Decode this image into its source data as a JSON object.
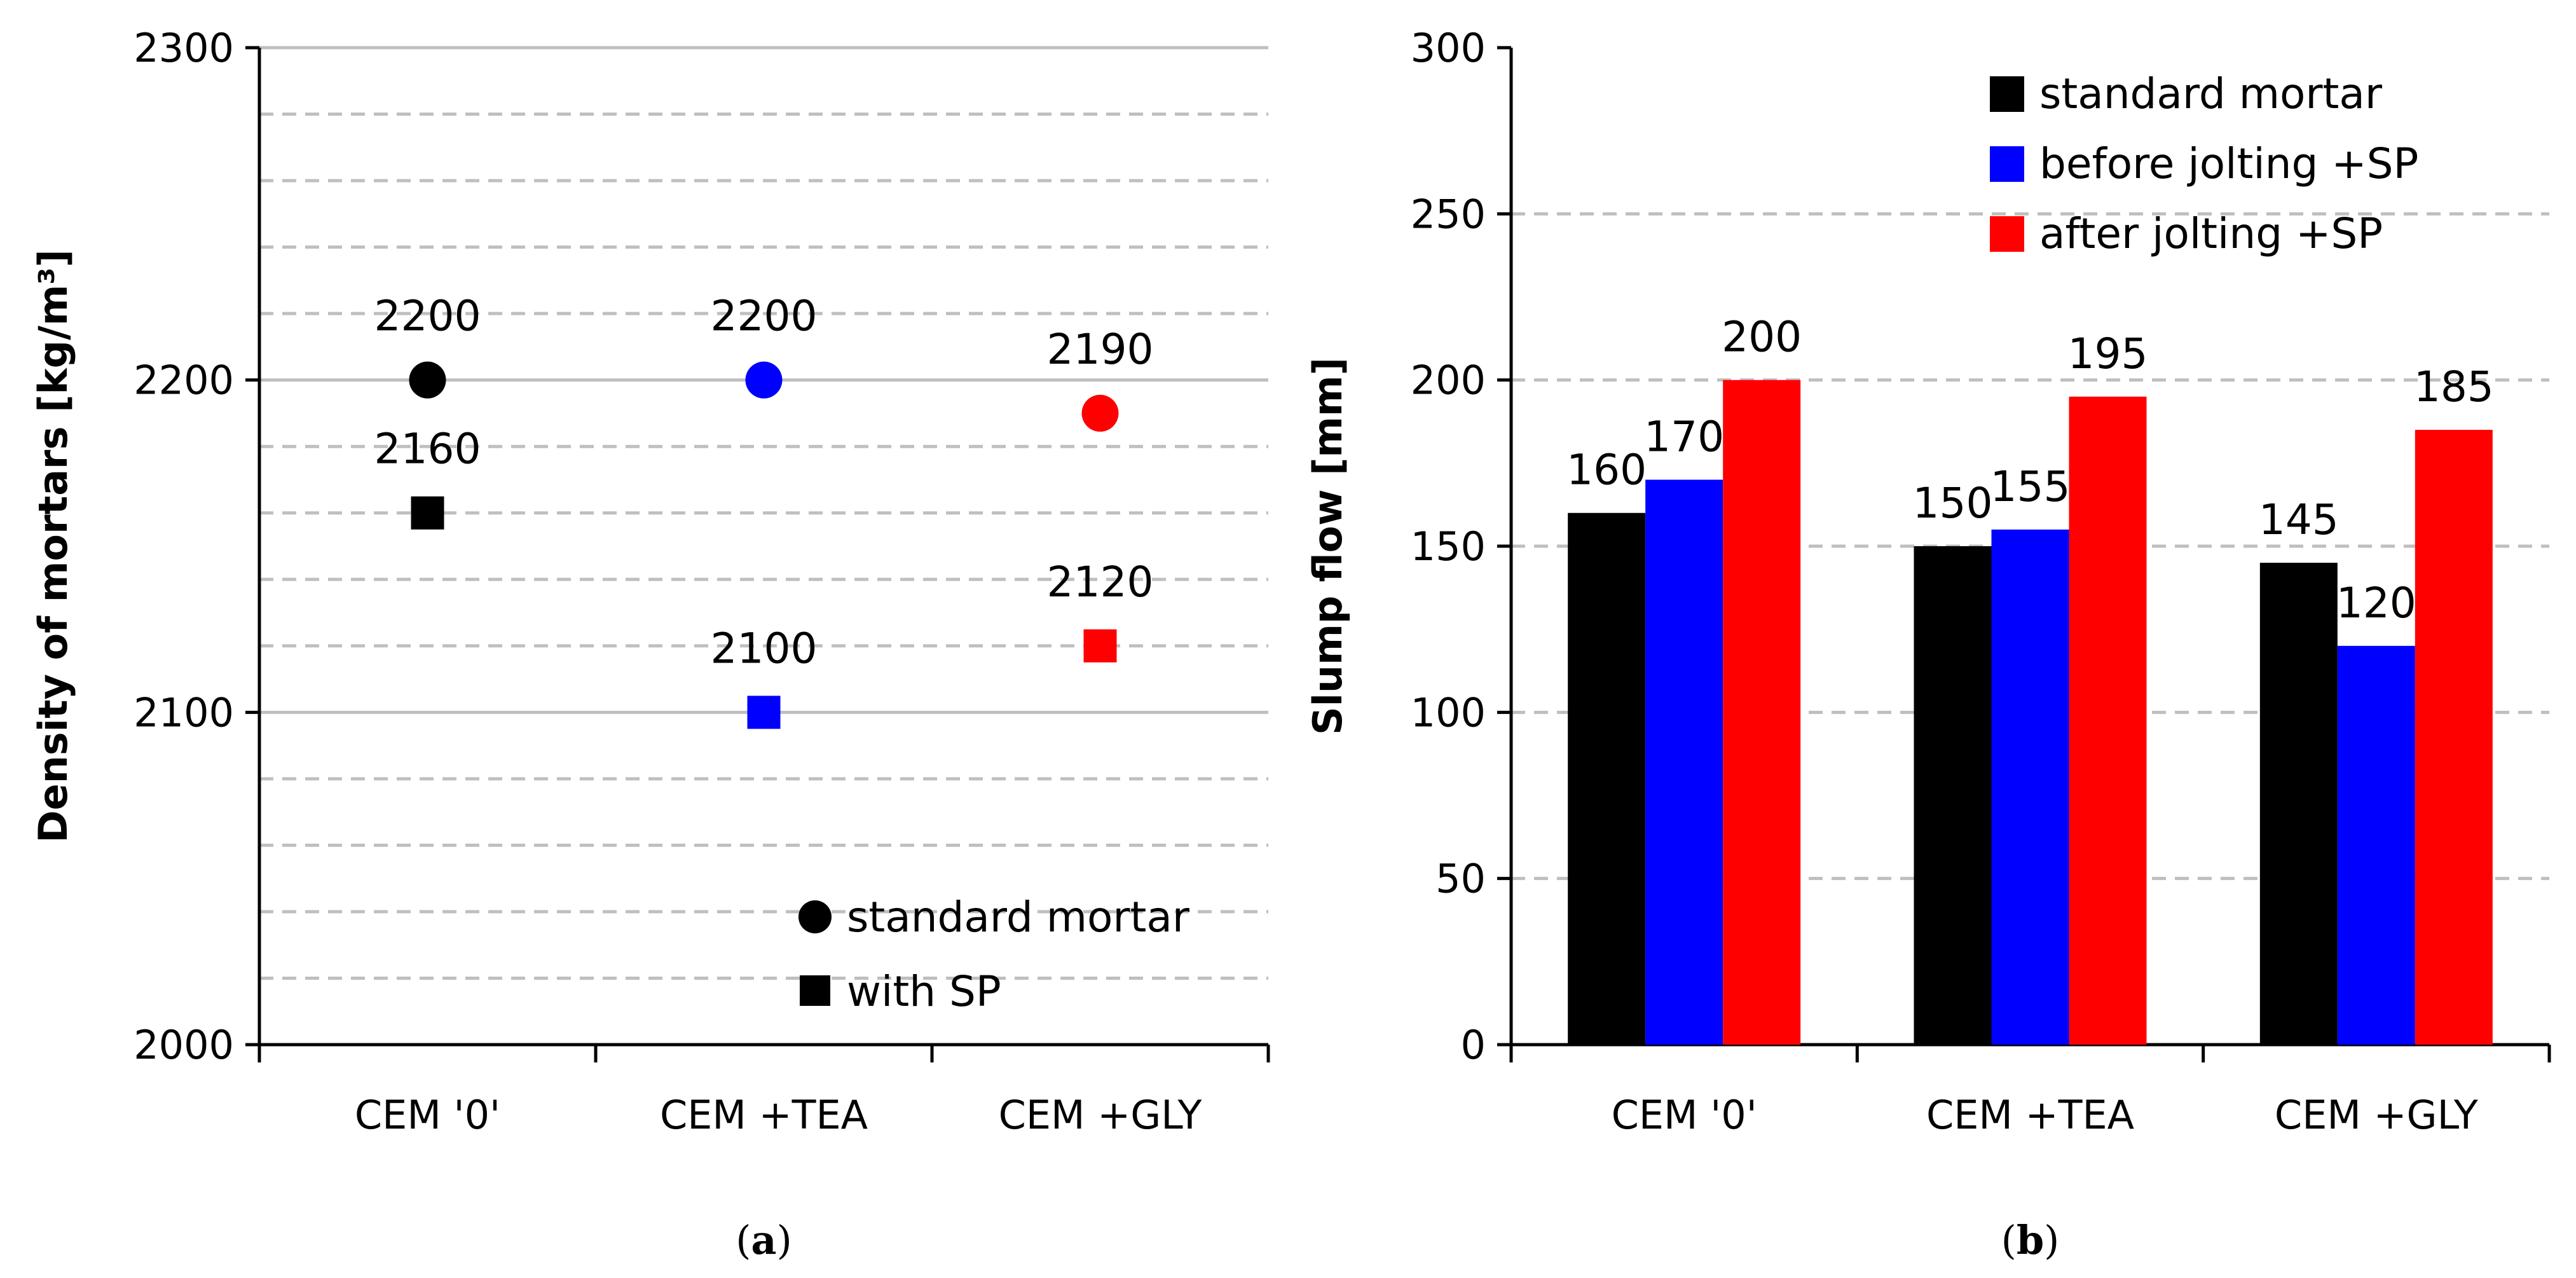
{
  "chart_data": [
    {
      "panel": "a",
      "caption_open": "(",
      "caption_letter": "a",
      "caption_close": ")",
      "type": "scatter",
      "ylabel": "Density of mortars [kg/m³]",
      "ylim": [
        2000,
        2300
      ],
      "yticks": [
        "2000",
        "2100",
        "2200",
        "2300"
      ],
      "ytick_values": [
        2000,
        2100,
        2200,
        2300
      ],
      "minor_grid_step": 20,
      "categories": [
        "CEM '0'",
        "CEM +TEA",
        "CEM +GLY"
      ],
      "series": [
        {
          "name": "standard mortar",
          "marker": "circle",
          "values": [
            2200,
            2200,
            2190
          ],
          "labels": [
            "2200",
            "2200",
            "2190"
          ]
        },
        {
          "name": "with SP",
          "marker": "square",
          "values": [
            2160,
            2100,
            2120
          ],
          "labels": [
            "2160",
            "2100",
            "2120"
          ]
        }
      ],
      "point_colors": [
        "#000000",
        "#0000ff",
        "#ff0000"
      ],
      "legend_position": "bottom-right"
    },
    {
      "panel": "b",
      "caption_open": "(",
      "caption_letter": "b",
      "caption_close": ")",
      "type": "bar",
      "ylabel": "Slump flow [mm]",
      "ylim": [
        0,
        300
      ],
      "yticks": [
        "0",
        "50",
        "100",
        "150",
        "200",
        "250",
        "300"
      ],
      "ytick_values": [
        0,
        50,
        100,
        150,
        200,
        250,
        300
      ],
      "categories": [
        "CEM '0'",
        "CEM +TEA",
        "CEM +GLY"
      ],
      "series": [
        {
          "name": "standard mortar",
          "color": "#000000",
          "values": [
            160,
            150,
            145
          ],
          "labels": [
            "160",
            "150",
            "145"
          ]
        },
        {
          "name": "before jolting +SP",
          "color": "#0000ff",
          "values": [
            170,
            155,
            120
          ],
          "labels": [
            "170",
            "155",
            "120"
          ]
        },
        {
          "name": "after jolting +SP",
          "color": "#ff0000",
          "values": [
            200,
            195,
            185
          ],
          "labels": [
            "200",
            "195",
            "185"
          ]
        }
      ],
      "legend_position": "top-right"
    }
  ]
}
